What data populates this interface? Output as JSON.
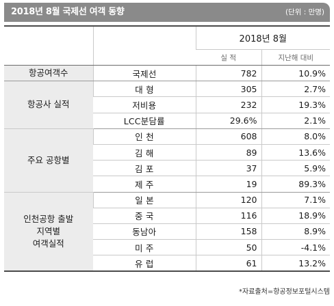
{
  "title": "2018년 8월 국제선 여객 동향",
  "unit": "(단위 : 만명)",
  "table": {
    "period_header": "2018년  8월",
    "col_actual": "실 적",
    "col_yoy": "지난해 대비",
    "groups": [
      {
        "category": "항공여객수",
        "rows": [
          {
            "label": "국제선",
            "value": "782",
            "yoy": "10.9%"
          }
        ]
      },
      {
        "category": "항공사 실적",
        "rows": [
          {
            "label": "대  형",
            "value": "305",
            "yoy": "2.7%"
          },
          {
            "label": "저비용",
            "value": "232",
            "yoy": "19.3%"
          },
          {
            "label": "LCC분담률",
            "value": "29.6%",
            "yoy": "2.1%"
          }
        ]
      },
      {
        "category": "주요 공항별",
        "rows": [
          {
            "label": "인  천",
            "value": "608",
            "yoy": "8.0%"
          },
          {
            "label": "김  해",
            "value": "89",
            "yoy": "13.6%"
          },
          {
            "label": "김  포",
            "value": "37",
            "yoy": "5.9%"
          },
          {
            "label": "제  주",
            "value": "19",
            "yoy": "89.3%"
          }
        ]
      },
      {
        "category": "인천공항 출발\n지역별\n여객실적",
        "rows": [
          {
            "label": "일  본",
            "value": "120",
            "yoy": "7.1%"
          },
          {
            "label": "중  국",
            "value": "116",
            "yoy": "18.9%"
          },
          {
            "label": "동남아",
            "value": "158",
            "yoy": "8.9%"
          },
          {
            "label": "미  주",
            "value": "50",
            "yoy": "-4.1%"
          },
          {
            "label": "유  럽",
            "value": "61",
            "yoy": "13.2%"
          }
        ]
      }
    ]
  },
  "source": "*자료출처=항공정보포털시스템"
}
